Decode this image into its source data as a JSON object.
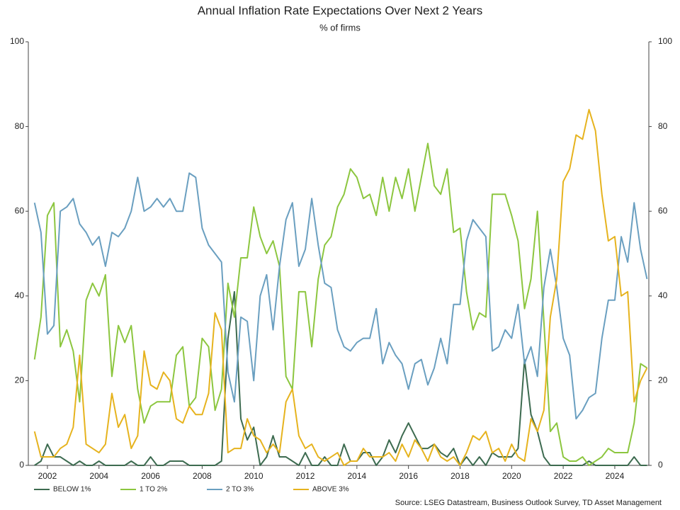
{
  "chart_data": {
    "type": "line",
    "title": "Annual Inflation Rate Expectations Over Next 2 Years",
    "subtitle": "% of firms",
    "source": "Source: LSEG Datastream, Business Outlook Survey, TD Asset Management",
    "x": [
      2001.5,
      2001.75,
      2002,
      2002.25,
      2002.5,
      2002.75,
      2003,
      2003.25,
      2003.5,
      2003.75,
      2004,
      2004.25,
      2004.5,
      2004.75,
      2005,
      2005.25,
      2005.5,
      2005.75,
      2006,
      2006.25,
      2006.5,
      2006.75,
      2007,
      2007.25,
      2007.5,
      2007.75,
      2008,
      2008.25,
      2008.5,
      2008.75,
      2009,
      2009.25,
      2009.5,
      2009.75,
      2010,
      2010.25,
      2010.5,
      2010.75,
      2011,
      2011.25,
      2011.5,
      2011.75,
      2012,
      2012.25,
      2012.5,
      2012.75,
      2013,
      2013.25,
      2013.5,
      2013.75,
      2014,
      2014.25,
      2014.5,
      2014.75,
      2015,
      2015.25,
      2015.5,
      2015.75,
      2016,
      2016.25,
      2016.5,
      2016.75,
      2017,
      2017.25,
      2017.5,
      2017.75,
      2018,
      2018.25,
      2018.5,
      2018.75,
      2019,
      2019.25,
      2019.5,
      2019.75,
      2020,
      2020.25,
      2020.5,
      2020.75,
      2021,
      2021.25,
      2021.5,
      2021.75,
      2022,
      2022.25,
      2022.5,
      2022.75,
      2023,
      2023.25,
      2023.5,
      2023.75,
      2024,
      2024.25,
      2024.5,
      2024.75,
      2025,
      2025.25
    ],
    "series": [
      {
        "name": "BELOW 1%",
        "color": "#3d6b50",
        "values": [
          0,
          1,
          5,
          2,
          2,
          1,
          0,
          1,
          0,
          0,
          1,
          0,
          0,
          0,
          0,
          1,
          0,
          0,
          2,
          0,
          0,
          1,
          1,
          1,
          0,
          0,
          0,
          0,
          0,
          1,
          30,
          41,
          11,
          6,
          9,
          0,
          2,
          7,
          2,
          2,
          1,
          0,
          3,
          0,
          0,
          2,
          0,
          0,
          5,
          1,
          1,
          3,
          3,
          0,
          2,
          6,
          3,
          7,
          10,
          7,
          4,
          4,
          5,
          3,
          2,
          4,
          0,
          2,
          0,
          2,
          0,
          3,
          2,
          2,
          2,
          4,
          25,
          12,
          8,
          2,
          0,
          0,
          0,
          0,
          0,
          0,
          1,
          0,
          0,
          0,
          0,
          0,
          0,
          2,
          0,
          0
        ]
      },
      {
        "name": "1 TO 2%",
        "color": "#8cc63f",
        "values": [
          25,
          35,
          59,
          62,
          28,
          32,
          27,
          15,
          39,
          43,
          40,
          45,
          21,
          33,
          29,
          33,
          18,
          10,
          14,
          15,
          15,
          15,
          26,
          28,
          14,
          16,
          30,
          28,
          13,
          18,
          43,
          35,
          49,
          49,
          61,
          54,
          50,
          53,
          47,
          21,
          18,
          41,
          41,
          28,
          44,
          52,
          54,
          61,
          64,
          70,
          68,
          63,
          64,
          59,
          68,
          60,
          68,
          63,
          70,
          60,
          68,
          76,
          66,
          64,
          70,
          55,
          56,
          41,
          32,
          36,
          35,
          64,
          64,
          64,
          59,
          53,
          37,
          44,
          60,
          34,
          8,
          10,
          2,
          1,
          1,
          2,
          0,
          1,
          2,
          4,
          3,
          3,
          3,
          10,
          24,
          23
        ]
      },
      {
        "name": "2 TO 3%",
        "color": "#6a9fc0",
        "values": [
          62,
          55,
          31,
          33,
          60,
          61,
          63,
          57,
          55,
          52,
          54,
          47,
          55,
          54,
          56,
          60,
          68,
          60,
          61,
          63,
          61,
          63,
          60,
          60,
          69,
          68,
          56,
          52,
          50,
          48,
          22,
          15,
          35,
          34,
          20,
          40,
          45,
          32,
          47,
          58,
          62,
          47,
          51,
          63,
          52,
          43,
          42,
          32,
          28,
          27,
          29,
          30,
          30,
          37,
          24,
          29,
          26,
          24,
          18,
          24,
          25,
          19,
          23,
          30,
          24,
          38,
          38,
          53,
          58,
          56,
          54,
          27,
          28,
          32,
          30,
          38,
          24,
          28,
          21,
          42,
          51,
          42,
          30,
          26,
          11,
          13,
          16,
          17,
          30,
          39,
          39,
          54,
          48,
          62,
          51,
          44
        ]
      },
      {
        "name": "ABOVE 3%",
        "color": "#e6b31e",
        "values": [
          8,
          2,
          2,
          2,
          4,
          5,
          9,
          26,
          5,
          4,
          3,
          5,
          17,
          9,
          12,
          4,
          7,
          27,
          19,
          18,
          22,
          20,
          11,
          10,
          14,
          12,
          12,
          17,
          36,
          32,
          3,
          4,
          4,
          11,
          7,
          6,
          3,
          5,
          3,
          15,
          18,
          7,
          4,
          5,
          2,
          1,
          2,
          3,
          0,
          1,
          1,
          4,
          2,
          2,
          2,
          3,
          1,
          5,
          2,
          6,
          4,
          1,
          5,
          2,
          1,
          2,
          0,
          3,
          7,
          6,
          8,
          3,
          4,
          1,
          5,
          2,
          1,
          11,
          8,
          13,
          35,
          44,
          67,
          70,
          78,
          77,
          84,
          79,
          64,
          53,
          54,
          40,
          41,
          15,
          20,
          23
        ]
      }
    ],
    "xlim": [
      2001.26,
      2025.32
    ],
    "xticks": [
      2002,
      2004,
      2006,
      2008,
      2010,
      2012,
      2014,
      2016,
      2018,
      2020,
      2022,
      2024
    ],
    "ylim": [
      0,
      100
    ],
    "yticks": [
      0,
      20,
      40,
      60,
      80,
      100
    ],
    "y2lim": [
      0,
      100
    ],
    "y2ticks": [
      0,
      20,
      40,
      60,
      80,
      100
    ]
  }
}
